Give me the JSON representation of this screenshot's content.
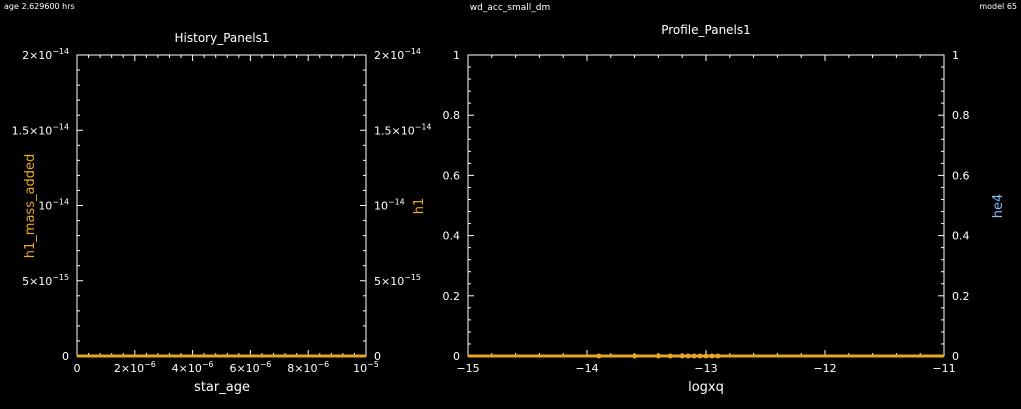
{
  "header": {
    "age_text": "age 2.629600 hrs",
    "run_name": "wd_acc_small_dm",
    "model_text": "model 65"
  },
  "colors": {
    "background": "#000000",
    "axes": "#ffffff",
    "series_orange": "#e8a623",
    "series_blue": "#87bff0"
  },
  "chart_data": [
    {
      "type": "line",
      "title": "History_Panels1",
      "xlabel": "star_age",
      "ylabel_left": "h1_mass_added",
      "ylabel_right": "h1",
      "xlim": [
        0,
        1e-05
      ],
      "ylim_left": [
        0,
        2e-14
      ],
      "ylim_right": [
        0,
        2e-14
      ],
      "x_ticks": [
        {
          "v": 0,
          "m": "0",
          "e": ""
        },
        {
          "v": 2e-06,
          "m": "2×10",
          "e": "−6"
        },
        {
          "v": 4e-06,
          "m": "4×10",
          "e": "−6"
        },
        {
          "v": 6e-06,
          "m": "6×10",
          "e": "−6"
        },
        {
          "v": 8e-06,
          "m": "8×10",
          "e": "−6"
        },
        {
          "v": 1e-05,
          "m": "10",
          "e": "−5"
        }
      ],
      "y_ticks": [
        {
          "v": 0,
          "m": "0",
          "e": ""
        },
        {
          "v": 5e-15,
          "m": "5×10",
          "e": "−15"
        },
        {
          "v": 1e-14,
          "m": "10",
          "e": "−14"
        },
        {
          "v": 1.5e-14,
          "m": "1.5×10",
          "e": "−14"
        },
        {
          "v": 2e-14,
          "m": "2×10",
          "e": "−14"
        }
      ],
      "series": [
        {
          "name": "h1_mass_added",
          "axis": "left",
          "color": "#e8a623",
          "x": [
            0,
            1e-05
          ],
          "y": [
            0,
            0
          ]
        },
        {
          "name": "h1",
          "axis": "right",
          "color": "#e8a623",
          "x": [
            0,
            1e-05
          ],
          "y": [
            0,
            0
          ]
        }
      ]
    },
    {
      "type": "line",
      "title": "Profile_Panels1",
      "xlabel": "logxq",
      "ylabel_right": "he4",
      "xlim": [
        -15,
        -11
      ],
      "ylim_left": [
        0,
        1
      ],
      "ylim_right": [
        0,
        1
      ],
      "x_ticks": [
        {
          "v": -15,
          "m": "−15",
          "e": ""
        },
        {
          "v": -14,
          "m": "−14",
          "e": ""
        },
        {
          "v": -13,
          "m": "−13",
          "e": ""
        },
        {
          "v": -12,
          "m": "−12",
          "e": ""
        },
        {
          "v": -11,
          "m": "−11",
          "e": ""
        }
      ],
      "y_ticks": [
        {
          "v": 0,
          "m": "0",
          "e": ""
        },
        {
          "v": 0.2,
          "m": "0.2",
          "e": ""
        },
        {
          "v": 0.4,
          "m": "0.4",
          "e": ""
        },
        {
          "v": 0.6,
          "m": "0.6",
          "e": ""
        },
        {
          "v": 0.8,
          "m": "0.8",
          "e": ""
        },
        {
          "v": 1,
          "m": "1",
          "e": ""
        }
      ],
      "series": [
        {
          "name": "",
          "axis": "left",
          "color": "#e8a623",
          "x": [
            -15,
            -11
          ],
          "y": [
            0,
            0
          ]
        },
        {
          "name": "he4",
          "axis": "right",
          "color": "#e8a623",
          "x": [
            -13.9,
            -13.6,
            -13.4,
            -13.3,
            -13.2,
            -13.15,
            -13.1,
            -13.05,
            -13.0,
            -12.95,
            -12.9
          ],
          "y": [
            0,
            0,
            0,
            0,
            0,
            0,
            0,
            0,
            0,
            0,
            0
          ]
        }
      ]
    }
  ]
}
